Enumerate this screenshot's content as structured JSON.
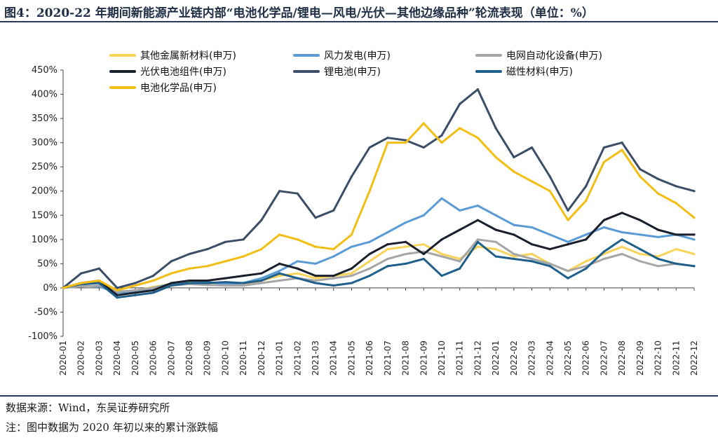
{
  "header": {
    "title": "图4：2020-22 年期间新能源产业链内部“电池化学品/锂电—风电/光伏—其他边缘品种”轮流表现（单位：%）"
  },
  "footer": {
    "source": "数据来源：Wind，东吴证券研究所",
    "note": "注：图中数据为 2020 年初以来的累计涨跌幅"
  },
  "chart_data": {
    "type": "line",
    "title": "",
    "xlabel": "",
    "ylabel": "",
    "ylim": [
      -100,
      450
    ],
    "yticks": [
      -100,
      -50,
      0,
      50,
      100,
      150,
      200,
      250,
      300,
      350,
      400,
      450
    ],
    "ytick_suffix": "%",
    "grid": false,
    "legend_position": "top",
    "x": [
      "2020-01",
      "2020-02",
      "2020-03",
      "2020-04",
      "2020-05",
      "2020-06",
      "2020-07",
      "2020-08",
      "2020-09",
      "2020-10",
      "2020-11",
      "2020-12",
      "2021-01",
      "2021-02",
      "2021-03",
      "2021-04",
      "2021-05",
      "2021-06",
      "2021-07",
      "2021-08",
      "2021-09",
      "2021-10",
      "2021-11",
      "2021-12",
      "2022-01",
      "2022-02",
      "2022-03",
      "2022-04",
      "2022-05",
      "2022-06",
      "2022-07",
      "2022-08",
      "2022-09",
      "2022-10",
      "2022-11",
      "2022-12"
    ],
    "series": [
      {
        "name": "其他金属新材料(申万)",
        "color": "#f8d35a",
        "values": [
          0,
          10,
          12,
          -10,
          -6,
          2,
          8,
          12,
          10,
          10,
          5,
          15,
          25,
          30,
          20,
          25,
          30,
          55,
          80,
          85,
          90,
          70,
          60,
          85,
          80,
          65,
          70,
          50,
          35,
          55,
          70,
          85,
          70,
          65,
          80,
          70
        ]
      },
      {
        "name": "风力发电(申万)",
        "color": "#5b9bd5",
        "values": [
          0,
          5,
          3,
          -10,
          -8,
          0,
          8,
          10,
          12,
          8,
          10,
          20,
          35,
          55,
          50,
          65,
          85,
          95,
          115,
          135,
          150,
          185,
          160,
          170,
          150,
          130,
          125,
          110,
          95,
          110,
          125,
          115,
          110,
          105,
          110,
          100
        ]
      },
      {
        "name": "电网自动化设备(申万)",
        "color": "#a6a6a6",
        "values": [
          0,
          3,
          5,
          -8,
          -5,
          0,
          5,
          8,
          6,
          5,
          5,
          10,
          15,
          20,
          15,
          20,
          25,
          40,
          60,
          70,
          75,
          65,
          55,
          100,
          95,
          70,
          60,
          50,
          35,
          45,
          60,
          70,
          55,
          45,
          50,
          45
        ]
      },
      {
        "name": "光伏电池组件(申万)",
        "color": "#1a1f2c",
        "values": [
          0,
          10,
          15,
          -15,
          -10,
          -5,
          10,
          15,
          15,
          20,
          25,
          30,
          50,
          40,
          25,
          25,
          40,
          70,
          90,
          95,
          70,
          100,
          120,
          140,
          120,
          110,
          90,
          80,
          90,
          100,
          140,
          155,
          140,
          120,
          110,
          110
        ]
      },
      {
        "name": "锂电池(申万)",
        "color": "#3c4d68",
        "values": [
          0,
          30,
          40,
          0,
          10,
          25,
          55,
          70,
          80,
          95,
          100,
          140,
          200,
          195,
          145,
          160,
          230,
          290,
          310,
          305,
          290,
          315,
          380,
          410,
          330,
          270,
          290,
          230,
          160,
          210,
          290,
          300,
          245,
          225,
          210,
          200
        ]
      },
      {
        "name": "磁性材料(申万)",
        "color": "#1f5f8b",
        "values": [
          0,
          8,
          10,
          -20,
          -15,
          -10,
          5,
          10,
          10,
          12,
          10,
          15,
          30,
          20,
          10,
          5,
          10,
          25,
          45,
          50,
          60,
          25,
          40,
          95,
          65,
          60,
          55,
          45,
          20,
          40,
          75,
          100,
          80,
          60,
          50,
          45
        ]
      },
      {
        "name": "电池化学品(申万)",
        "color": "#f2be14",
        "values": [
          0,
          10,
          15,
          -5,
          5,
          15,
          30,
          40,
          45,
          55,
          65,
          80,
          110,
          100,
          85,
          80,
          110,
          200,
          300,
          300,
          340,
          300,
          330,
          310,
          270,
          240,
          220,
          200,
          140,
          180,
          260,
          285,
          230,
          195,
          175,
          145
        ]
      }
    ]
  }
}
